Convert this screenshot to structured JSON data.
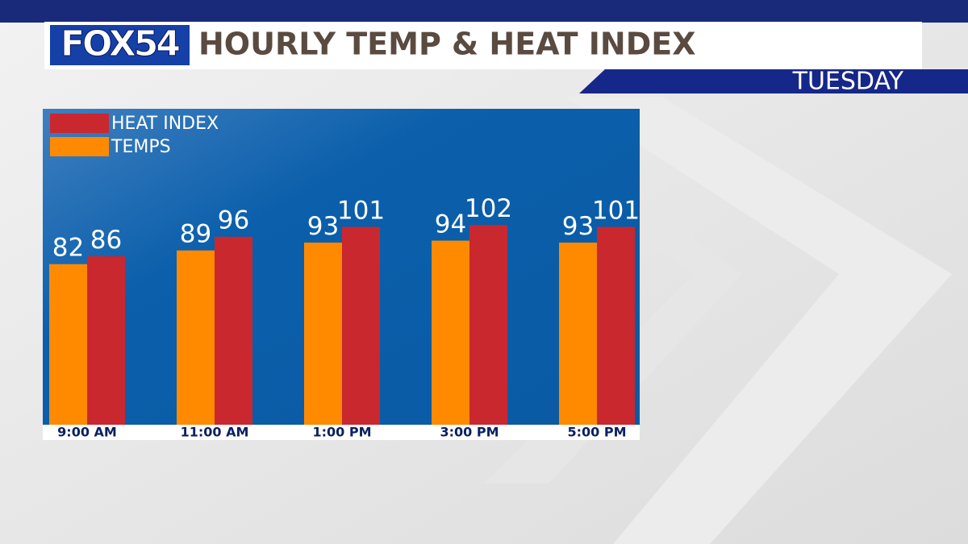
{
  "logo": "FOX54",
  "chart_data": {
    "type": "bar",
    "title": "HOURLY TEMP & HEAT INDEX",
    "subtitle": "TUESDAY",
    "categories": [
      "9:00 AM",
      "11:00 AM",
      "1:00 PM",
      "3:00 PM",
      "5:00 PM"
    ],
    "series": [
      {
        "name": "TEMPS",
        "color": "#ff8a00",
        "values": [
          82,
          89,
          93,
          94,
          93
        ]
      },
      {
        "name": "HEAT INDEX",
        "color": "#c9282f",
        "values": [
          86,
          96,
          101,
          102,
          101
        ]
      }
    ],
    "legend_order": [
      1,
      0
    ]
  }
}
